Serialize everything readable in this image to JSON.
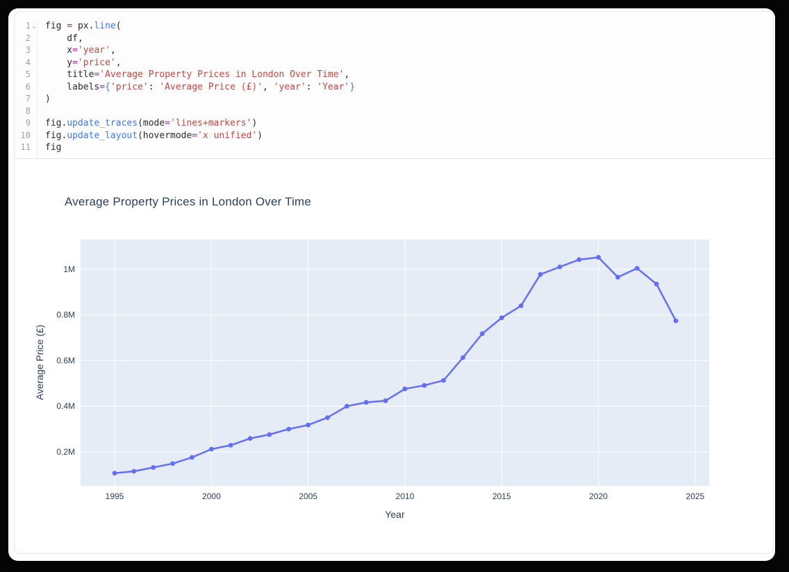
{
  "editor": {
    "fold_icon": "⌄",
    "lines": [
      {
        "num": "1",
        "fold": true,
        "tokens": [
          [
            "p",
            "fig "
          ],
          [
            "o",
            "="
          ],
          [
            "p",
            " px."
          ],
          [
            "f",
            "line"
          ],
          [
            "p",
            "("
          ]
        ]
      },
      {
        "num": "2",
        "tokens": [
          [
            "p",
            "    df,"
          ]
        ]
      },
      {
        "num": "3",
        "tokens": [
          [
            "p",
            "    x"
          ],
          [
            "o",
            "="
          ],
          [
            "s",
            "'year'"
          ],
          [
            "p",
            ","
          ]
        ]
      },
      {
        "num": "4",
        "tokens": [
          [
            "p",
            "    y"
          ],
          [
            "o",
            "="
          ],
          [
            "s",
            "'price'"
          ],
          [
            "p",
            ","
          ]
        ]
      },
      {
        "num": "5",
        "tokens": [
          [
            "p",
            "    title"
          ],
          [
            "o",
            "="
          ],
          [
            "s",
            "'Average Property Prices in London Over Time'"
          ],
          [
            "p",
            ","
          ]
        ]
      },
      {
        "num": "6",
        "tokens": [
          [
            "p",
            "    labels"
          ],
          [
            "o",
            "="
          ],
          [
            "b",
            "{"
          ],
          [
            "s",
            "'price'"
          ],
          [
            "p",
            ": "
          ],
          [
            "s",
            "'Average Price (£)'"
          ],
          [
            "p",
            ", "
          ],
          [
            "s",
            "'year'"
          ],
          [
            "p",
            ": "
          ],
          [
            "s",
            "'Year'"
          ],
          [
            "b",
            "}"
          ]
        ]
      },
      {
        "num": "7",
        "tokens": [
          [
            "p",
            ")"
          ]
        ]
      },
      {
        "num": "8",
        "tokens": []
      },
      {
        "num": "9",
        "tokens": [
          [
            "p",
            "fig."
          ],
          [
            "f",
            "update_traces"
          ],
          [
            "p",
            "(mode"
          ],
          [
            "o",
            "="
          ],
          [
            "s",
            "'lines+markers'"
          ],
          [
            "p",
            ")"
          ]
        ]
      },
      {
        "num": "10",
        "tokens": [
          [
            "p",
            "fig."
          ],
          [
            "f",
            "update_layout"
          ],
          [
            "p",
            "(hovermode"
          ],
          [
            "o",
            "="
          ],
          [
            "s",
            "'x unified'"
          ],
          [
            "p",
            ")"
          ]
        ]
      },
      {
        "num": "11",
        "tokens": [
          [
            "p",
            "fig"
          ]
        ]
      }
    ]
  },
  "chart_data": {
    "type": "line",
    "mode": "lines+markers",
    "title": "Average Property Prices in London Over Time",
    "xlabel": "Year",
    "ylabel": "Average Price (£)",
    "series_color": "#636efa",
    "plot_bg": "#e5ecf6",
    "grid_color": "#ffffff",
    "label_color": "#2a3f5f",
    "x": [
      1995,
      1996,
      1997,
      1998,
      1999,
      2000,
      2001,
      2002,
      2003,
      2004,
      2005,
      2006,
      2007,
      2008,
      2009,
      2010,
      2011,
      2012,
      2013,
      2014,
      2015,
      2016,
      2017,
      2018,
      2019,
      2020,
      2021,
      2022,
      2023,
      2024
    ],
    "y": [
      107000,
      115000,
      132000,
      149000,
      176000,
      212000,
      229000,
      259000,
      276000,
      300000,
      318000,
      350000,
      400000,
      417000,
      424000,
      476000,
      491000,
      513000,
      613000,
      718000,
      787000,
      840000,
      977000,
      1010000,
      1042000,
      1052000,
      965000,
      1004000,
      935000,
      774000
    ],
    "xticks": [
      1995,
      2000,
      2005,
      2010,
      2015,
      2020,
      2025
    ],
    "yticks": [
      {
        "value": 200000,
        "label": "0.2M"
      },
      {
        "value": 400000,
        "label": "0.4M"
      },
      {
        "value": 600000,
        "label": "0.6M"
      },
      {
        "value": 800000,
        "label": "0.8M"
      },
      {
        "value": 1000000,
        "label": "1M"
      }
    ],
    "xlim": [
      1993.24,
      2025.72
    ],
    "ylim": [
      51000,
      1130000
    ],
    "grid": true,
    "legend": "none"
  }
}
